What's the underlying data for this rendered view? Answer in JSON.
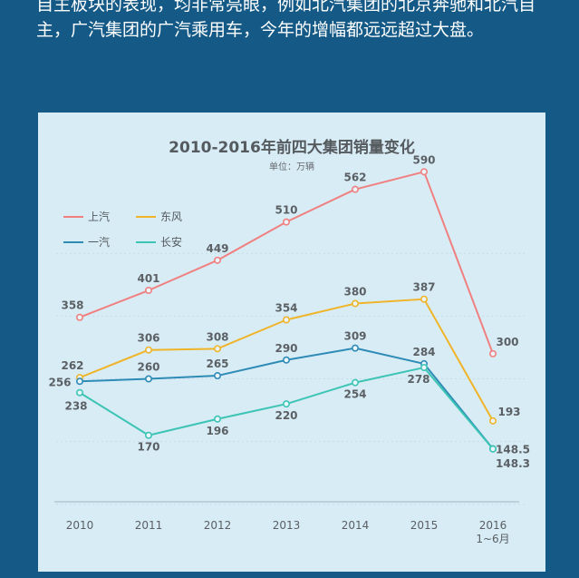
{
  "intro_lines": [
    "自主板块的表现，均非常亮眼，例如北汽集团的北京奔驰和北汽自",
    "主，广汽集团的广汽乘用车，今年的增幅都远远超过大盘。"
  ],
  "chart_data": {
    "type": "line",
    "title": "2010-2016年前四大集团销量变化",
    "subtitle": "单位：万辆",
    "categories": [
      "2010",
      "2011",
      "2012",
      "2013",
      "2014",
      "2015",
      "2016"
    ],
    "last_category_sub": "1~6月",
    "series": [
      {
        "name": "上汽",
        "color": "#f08080",
        "values": [
          358,
          401,
          449,
          510,
          562,
          590,
          300
        ],
        "labels": [
          "358",
          "401",
          "449",
          "510",
          "562",
          "590",
          "300"
        ]
      },
      {
        "name": "东风",
        "color": "#f0b429",
        "values": [
          262,
          306,
          308,
          354,
          380,
          387,
          193
        ],
        "labels": [
          "262",
          "306",
          "308",
          "354",
          "380",
          "387",
          "193"
        ]
      },
      {
        "name": "一汽",
        "color": "#2e8bb5",
        "values": [
          256,
          260,
          265,
          290,
          309,
          284,
          148.5
        ],
        "labels": [
          "256",
          "260",
          "265",
          "290",
          "309",
          "284",
          "148.5"
        ]
      },
      {
        "name": "长安",
        "color": "#3cc4b4",
        "values": [
          238,
          170,
          196,
          220,
          254,
          278,
          148.3
        ],
        "labels": [
          "238",
          "170",
          "196",
          "220",
          "254",
          "278",
          "148.3"
        ]
      }
    ],
    "legend_position": "top-left",
    "grid": true
  }
}
